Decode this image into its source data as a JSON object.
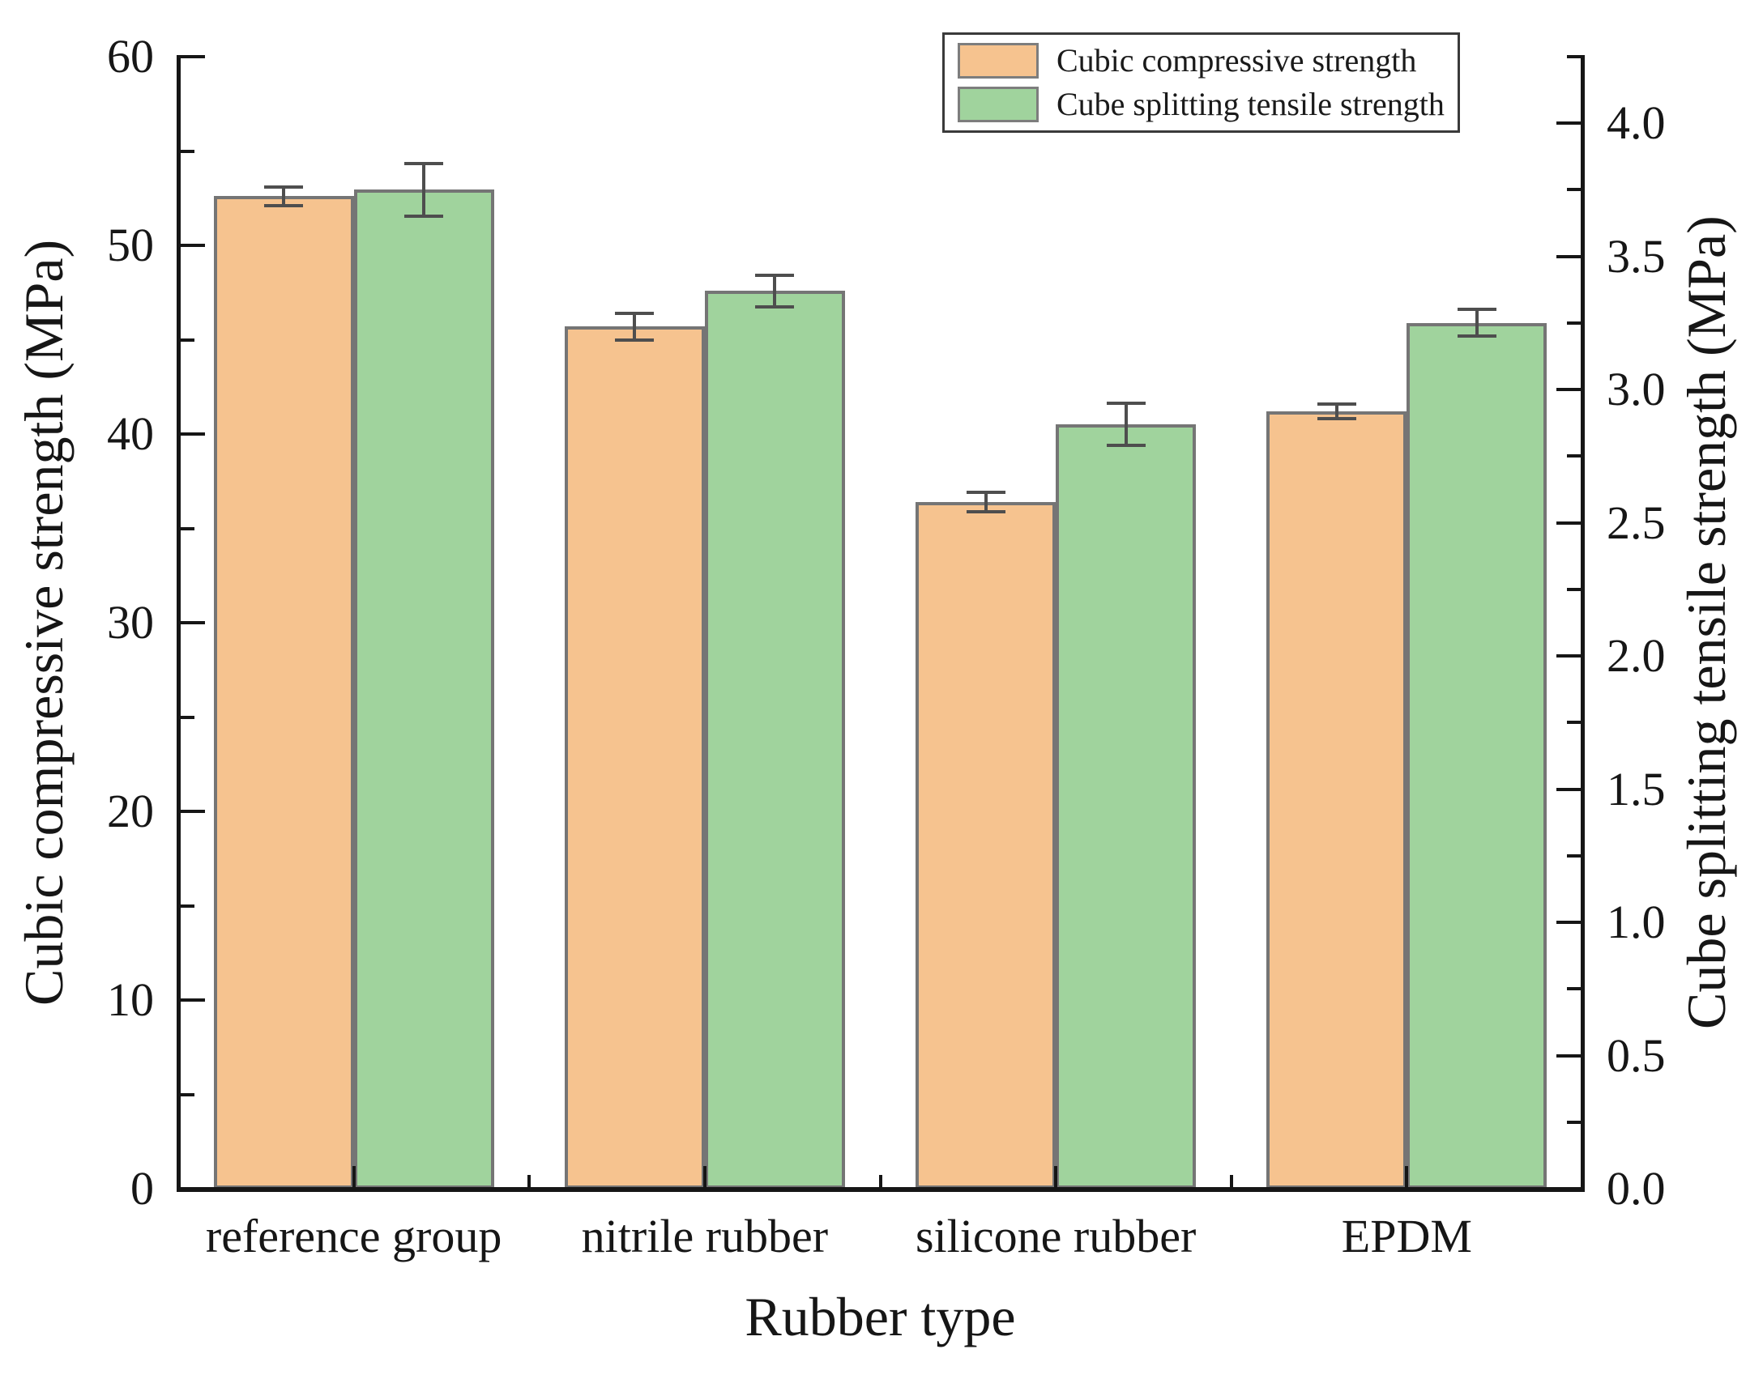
{
  "chart_data": {
    "type": "bar",
    "title": "",
    "xlabel": "Rubber type",
    "ylabel_left": "Cubic compressive strength (MPa)",
    "ylabel_right": "Cube splitting tensile strength (MPa)",
    "categories": [
      "reference group",
      "nitrile rubber",
      "silicone rubber",
      "EPDM"
    ],
    "series": [
      {
        "name": "Cubic compressive strength",
        "axis": "left",
        "color": "#F6C38F",
        "edge_color": "#757575",
        "values": [
          52.6,
          45.7,
          36.4,
          41.2
        ],
        "errors": [
          0.5,
          0.7,
          0.5,
          0.4
        ]
      },
      {
        "name": "Cube splitting tensile strength",
        "axis": "right",
        "color": "#A0D39D",
        "edge_color": "#757575",
        "values": [
          3.75,
          3.37,
          2.87,
          3.25
        ],
        "errors": [
          0.1,
          0.06,
          0.08,
          0.05
        ]
      }
    ],
    "left_axis": {
      "min": 0,
      "max": 60,
      "major_step": 10,
      "minor_step": 5,
      "tick_labels": [
        "0",
        "10",
        "20",
        "30",
        "40",
        "50",
        "60"
      ]
    },
    "right_axis": {
      "min": 0,
      "max": 4.25,
      "major_step": 0.5,
      "minor_step": 0.25,
      "tick_labels": [
        "0.0",
        "0.5",
        "1.0",
        "1.5",
        "2.0",
        "2.5",
        "3.0",
        "3.5",
        "4.0"
      ]
    },
    "grid": false,
    "error_bars": true,
    "legend_position": "top-right",
    "bar_edge_color": "#757575",
    "error_bar_color": "#4e4e4e"
  }
}
